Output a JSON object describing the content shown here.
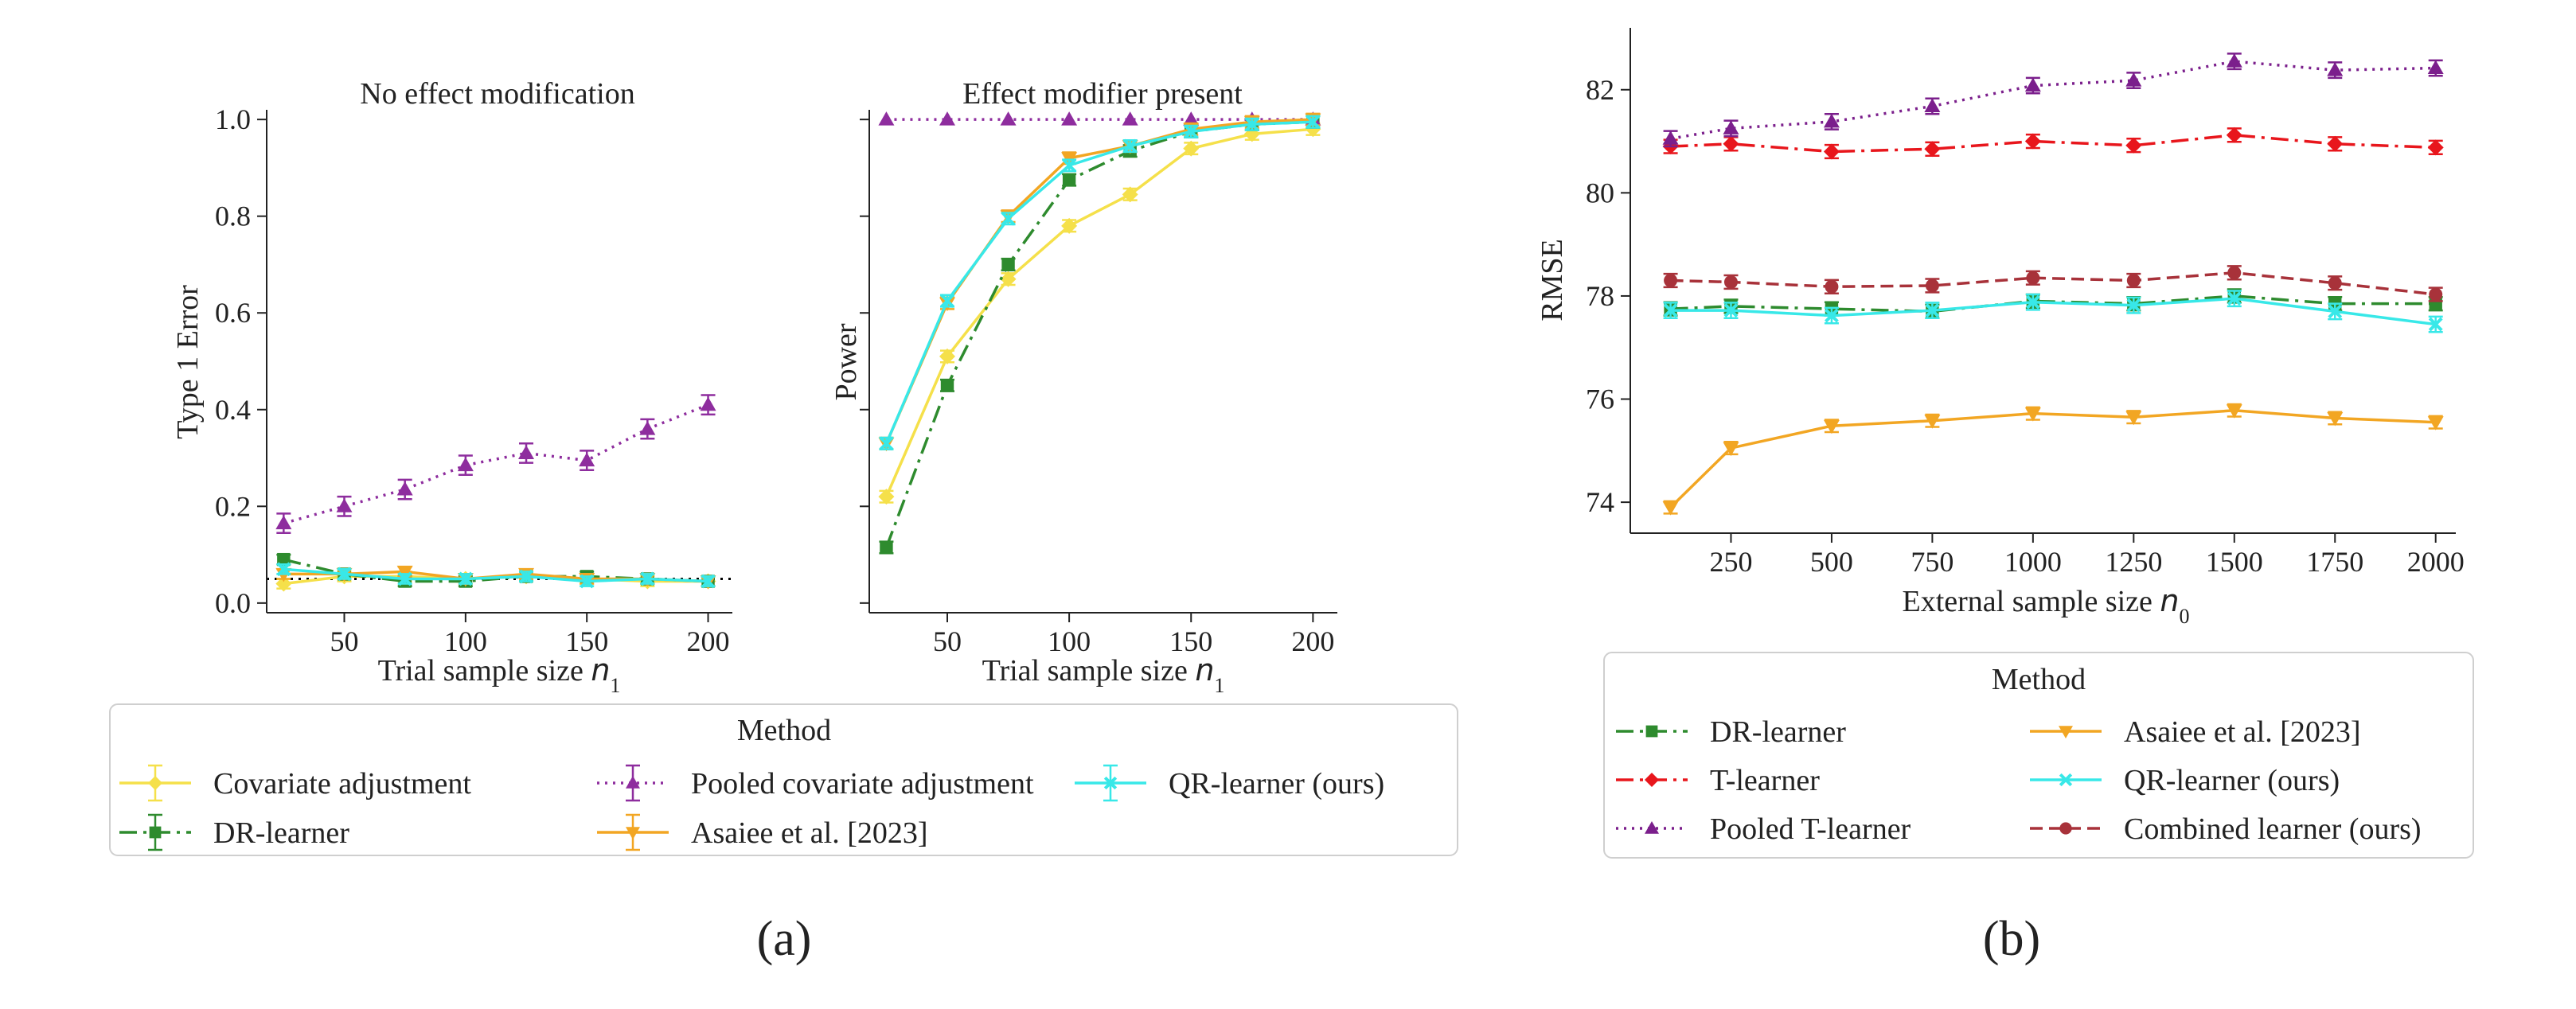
{
  "panel_labels": [
    "(a)",
    "(b)"
  ],
  "legends": [
    {
      "title": "Method",
      "entries": [
        {
          "series": "Covariate adjustment",
          "label": "Covariate adjustment"
        },
        {
          "series": "Pooled covariate adjustment",
          "label": "Pooled covariate adjustment"
        },
        {
          "series": "QR-learner (ours)",
          "label": "QR-learner (ours)"
        },
        {
          "series": "DR-learner",
          "label": "DR-learner"
        },
        {
          "series": "Asaiee et al. [2023]",
          "label": "Asaiee et al. [2023]"
        }
      ]
    },
    {
      "title": "Method",
      "entries": [
        {
          "series": "DR-learner",
          "label": "DR-learner"
        },
        {
          "series": "Asaiee et al. [2023]",
          "label": "Asaiee et al. [2023]"
        },
        {
          "series": "T-learner",
          "label": "T-learner"
        },
        {
          "series": "QR-learner (ours)",
          "label": "QR-learner (ours)"
        },
        {
          "series": "Pooled T-learner",
          "label": "Pooled T-learner"
        },
        {
          "series": "Combined learner (ours)",
          "label": "Combined learner (ours)"
        }
      ]
    }
  ],
  "styles": {
    "Covariate adjustment": {
      "color": "#f5e04a",
      "marker": "diamond",
      "dash": "solid"
    },
    "DR-learner": {
      "color": "#2e8b2e",
      "marker": "square",
      "dash": "dashdot"
    },
    "Pooled covariate adjustment": {
      "color": "#8e2d9e",
      "marker": "triangle-up",
      "dash": "dotted"
    },
    "Asaiee et al. [2023]": {
      "color": "#f2a623",
      "marker": "triangle-down",
      "dash": "solid"
    },
    "QR-learner (ours)": {
      "color": "#38e8e8",
      "marker": "x",
      "dash": "solid"
    },
    "T-learner": {
      "color": "#e8161c",
      "marker": "diamond",
      "dash": "dashdot"
    },
    "Pooled T-learner": {
      "color": "#7b1f8c",
      "marker": "triangle-up",
      "dash": "dotted"
    },
    "Combined learner (ours)": {
      "color": "#a8323a",
      "marker": "circle",
      "dash": "dashed"
    }
  },
  "chart_data": [
    {
      "type": "line",
      "title": "No effect modification",
      "xlabel": "Trial sample size n1",
      "ylabel": "Type 1 Error",
      "xlim": [
        18,
        210
      ],
      "ylim": [
        -0.02,
        1.02
      ],
      "xticks": [
        50,
        100,
        150,
        200
      ],
      "yticks": [
        0.0,
        0.2,
        0.4,
        0.6,
        0.8,
        1.0
      ],
      "reference_line": {
        "y": 0.05,
        "style": "dotted",
        "color": "#000000"
      },
      "x": [
        25,
        50,
        75,
        100,
        125,
        150,
        175,
        200
      ],
      "series": [
        {
          "name": "Covariate adjustment",
          "values": [
            0.04,
            0.055,
            0.055,
            0.05,
            0.055,
            0.05,
            0.045,
            0.045
          ],
          "err": 0.01
        },
        {
          "name": "DR-learner",
          "values": [
            0.09,
            0.06,
            0.045,
            0.045,
            0.055,
            0.055,
            0.05,
            0.045
          ],
          "err": 0.01
        },
        {
          "name": "Pooled covariate adjustment",
          "values": [
            0.165,
            0.2,
            0.235,
            0.285,
            0.31,
            0.295,
            0.36,
            0.41
          ],
          "err": 0.02
        },
        {
          "name": "Asaiee et al. [2023]",
          "values": [
            0.06,
            0.06,
            0.065,
            0.05,
            0.06,
            0.05,
            0.05,
            0.045
          ],
          "err": 0.01
        },
        {
          "name": "QR-learner (ours)",
          "values": [
            0.07,
            0.06,
            0.05,
            0.05,
            0.055,
            0.045,
            0.05,
            0.045
          ],
          "err": 0.01
        }
      ]
    },
    {
      "type": "line",
      "title": "Effect modifier present",
      "xlabel": "Trial sample size n1",
      "ylabel": "Power",
      "xlim": [
        18,
        210
      ],
      "ylim": [
        -0.02,
        1.02
      ],
      "xticks": [
        50,
        100,
        150,
        200
      ],
      "yticks": [
        0.0,
        0.2,
        0.4,
        0.6,
        0.8,
        1.0
      ],
      "hide_ytick_labels": true,
      "x": [
        25,
        50,
        75,
        100,
        125,
        150,
        175,
        200
      ],
      "series": [
        {
          "name": "Covariate adjustment",
          "values": [
            0.22,
            0.51,
            0.67,
            0.78,
            0.845,
            0.94,
            0.97,
            0.98
          ],
          "err": 0.012
        },
        {
          "name": "DR-learner",
          "values": [
            0.115,
            0.45,
            0.7,
            0.875,
            0.935,
            0.975,
            0.99,
            0.995
          ],
          "err": 0.012
        },
        {
          "name": "Pooled covariate adjustment",
          "values": [
            1.0,
            1.0,
            1.0,
            1.0,
            1.0,
            1.0,
            1.0,
            1.0
          ],
          "err": 0.0
        },
        {
          "name": "Asaiee et al. [2023]",
          "values": [
            0.33,
            0.62,
            0.8,
            0.92,
            0.945,
            0.98,
            0.995,
            1.0
          ],
          "err": 0.012
        },
        {
          "name": "QR-learner (ours)",
          "values": [
            0.33,
            0.625,
            0.795,
            0.905,
            0.945,
            0.975,
            0.99,
            0.995
          ],
          "err": 0.012
        }
      ]
    },
    {
      "type": "line",
      "title": "",
      "xlabel": "External sample size n0",
      "ylabel": "RMSE",
      "xlim": [
        0,
        2050
      ],
      "ylim": [
        73.4,
        83.2
      ],
      "xticks": [
        250,
        500,
        750,
        1000,
        1250,
        1500,
        1750,
        2000
      ],
      "yticks": [
        74,
        76,
        78,
        80,
        82
      ],
      "x": [
        100,
        250,
        500,
        750,
        1000,
        1250,
        1500,
        1750,
        2000
      ],
      "series": [
        {
          "name": "DR-learner",
          "values": [
            77.75,
            77.8,
            77.75,
            77.7,
            77.9,
            77.85,
            78.0,
            77.85,
            77.85
          ],
          "err": 0.13
        },
        {
          "name": "T-learner",
          "values": [
            80.9,
            80.95,
            80.8,
            80.85,
            81.0,
            80.92,
            81.12,
            80.95,
            80.88
          ],
          "err": 0.13
        },
        {
          "name": "Pooled T-learner",
          "values": [
            81.05,
            81.25,
            81.38,
            81.68,
            82.08,
            82.18,
            82.55,
            82.38,
            82.42
          ],
          "err": 0.15
        },
        {
          "name": "Asaiee et al. [2023]",
          "values": [
            73.9,
            75.05,
            75.48,
            75.58,
            75.72,
            75.65,
            75.78,
            75.63,
            75.55
          ],
          "err": 0.12
        },
        {
          "name": "QR-learner (ours)",
          "values": [
            77.72,
            77.72,
            77.62,
            77.72,
            77.88,
            77.82,
            77.95,
            77.7,
            77.45
          ],
          "err": 0.15
        },
        {
          "name": "Combined learner (ours)",
          "values": [
            78.3,
            78.27,
            78.18,
            78.2,
            78.35,
            78.3,
            78.45,
            78.25,
            78.03
          ],
          "err": 0.13
        }
      ]
    }
  ]
}
